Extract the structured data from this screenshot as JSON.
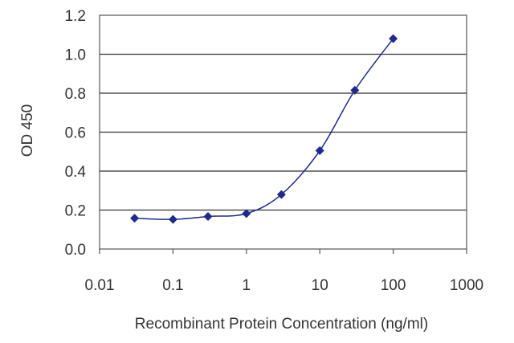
{
  "chart_data": {
    "type": "line",
    "title": "",
    "xlabel": "Recombinant Protein Concentration (ng/ml)",
    "ylabel": "OD 450",
    "x_scale": "log",
    "xlim": [
      0.01,
      1000
    ],
    "ylim": [
      0.0,
      1.2
    ],
    "x_ticks": [
      0.01,
      0.1,
      1,
      10,
      100,
      1000
    ],
    "x_tick_labels": [
      "0.01",
      "0.1",
      "1",
      "10",
      "100",
      "1000"
    ],
    "y_ticks": [
      0.0,
      0.2,
      0.4,
      0.6,
      0.8,
      1.0,
      1.2
    ],
    "y_tick_labels": [
      "0.0",
      "0.2",
      "0.4",
      "0.6",
      "0.8",
      "1.0",
      "1.2"
    ],
    "grid": "horizontal",
    "series": [
      {
        "x": [
          0.03,
          0.1,
          0.3,
          1,
          3,
          10,
          30,
          100
        ],
        "y": [
          0.158,
          0.152,
          0.167,
          0.182,
          0.28,
          0.505,
          0.815,
          1.08
        ],
        "color": "#1f2a8c",
        "marker": "diamond"
      }
    ]
  }
}
